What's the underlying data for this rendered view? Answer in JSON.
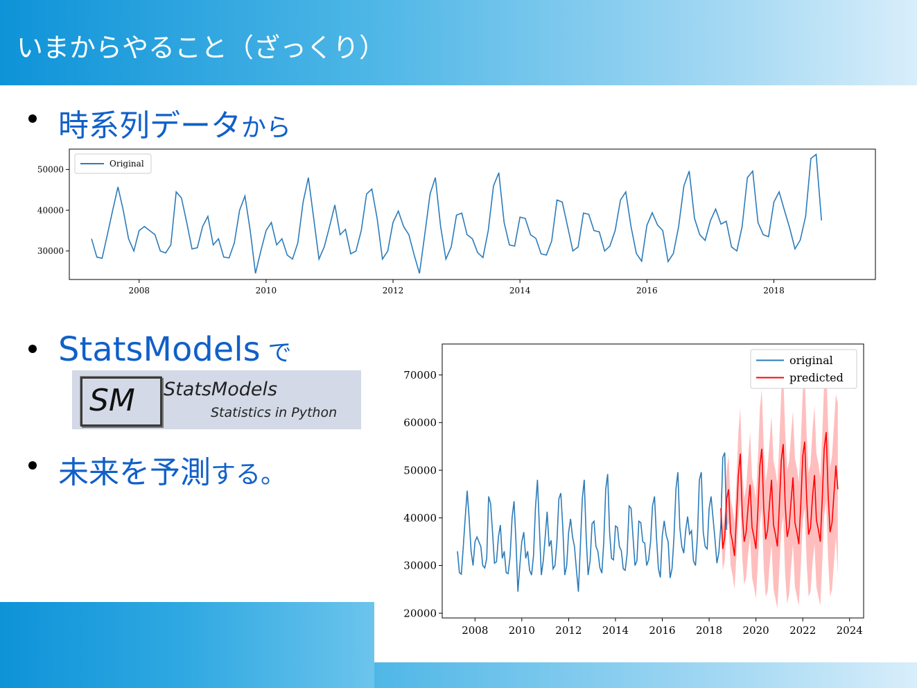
{
  "slide": {
    "title": "いまからやること（ざっくり）",
    "bullets": [
      {
        "main": "時系列データ",
        "tail": "から"
      },
      {
        "main": "StatsModels",
        "tail": " で"
      },
      {
        "main": "未来を予測",
        "tail": "する。"
      }
    ],
    "logo": {
      "letters": "SM",
      "name": "StatsModels",
      "tagline": "Statistics in Python"
    }
  },
  "colors": {
    "accent_blue": "#1060c8",
    "series_original": "#2b7bb9",
    "series_predicted": "#ff0000",
    "confidence_band": "#ffb3b3"
  },
  "chart_data": [
    {
      "type": "line",
      "x_start": "2007-04",
      "x_step": "1 month",
      "xticks": [
        "2008",
        "2010",
        "2012",
        "2014",
        "2016",
        "2018"
      ],
      "yticks": [
        "30000",
        "40000",
        "50000"
      ],
      "ylim": [
        23000,
        55000
      ],
      "grid": false,
      "legend_position": "top-left",
      "series": [
        {
          "name": "Original",
          "values": [
            33000,
            28500,
            28200,
            34000,
            40000,
            45700,
            40000,
            33000,
            30000,
            35000,
            36000,
            35000,
            34000,
            30000,
            29500,
            31500,
            44500,
            43000,
            37000,
            30500,
            30800,
            36000,
            38500,
            31500,
            33000,
            28500,
            28300,
            32000,
            40000,
            43500,
            35000,
            24500,
            30000,
            35000,
            37000,
            31500,
            33000,
            29000,
            28000,
            32000,
            42000,
            48000,
            38000,
            28000,
            31000,
            36000,
            41300,
            34000,
            35300,
            29300,
            30000,
            35000,
            44000,
            45200,
            38000,
            28000,
            30000,
            37000,
            39800,
            36000,
            34000,
            29000,
            24500,
            34000,
            44000,
            48000,
            36000,
            28000,
            31000,
            38800,
            39300,
            34000,
            33000,
            29600,
            28400,
            35000,
            46000,
            49200,
            37000,
            31500,
            31200,
            38300,
            38000,
            34000,
            33100,
            29300,
            29000,
            32500,
            42500,
            42000,
            36000,
            30000,
            31000,
            39300,
            39000,
            35000,
            34700,
            30000,
            31200,
            35000,
            42500,
            44500,
            36000,
            29400,
            27500,
            36300,
            39400,
            36400,
            35000,
            27400,
            29400,
            36000,
            46000,
            49600,
            38000,
            34000,
            32600,
            37400,
            40300,
            36600,
            37300,
            31000,
            30000,
            36000,
            48000,
            49600,
            37000,
            34000,
            33500,
            42000,
            44500,
            40000,
            35600,
            30500,
            32700,
            38500,
            52700,
            53700,
            37500
          ]
        }
      ]
    },
    {
      "type": "line",
      "x_start": "2007-04",
      "x_step": "1 month",
      "xticks": [
        "2008",
        "2010",
        "2012",
        "2014",
        "2016",
        "2018",
        "2020",
        "2022",
        "2024"
      ],
      "yticks": [
        "20000",
        "30000",
        "40000",
        "50000",
        "60000",
        "70000"
      ],
      "ylim": [
        19000,
        76500
      ],
      "grid": false,
      "legend_position": "top-right",
      "series": [
        {
          "name": "original",
          "values": [
            33000,
            28500,
            28200,
            34000,
            40000,
            45700,
            40000,
            33000,
            30000,
            35000,
            36000,
            35000,
            34000,
            30000,
            29500,
            31500,
            44500,
            43000,
            37000,
            30500,
            30800,
            36000,
            38500,
            31500,
            33000,
            28500,
            28300,
            32000,
            40000,
            43500,
            35000,
            24500,
            30000,
            35000,
            37000,
            31500,
            33000,
            29000,
            28000,
            32000,
            42000,
            48000,
            38000,
            28000,
            31000,
            36000,
            41300,
            34000,
            35300,
            29300,
            30000,
            35000,
            44000,
            45200,
            38000,
            28000,
            30000,
            37000,
            39800,
            36000,
            34000,
            29000,
            24500,
            34000,
            44000,
            48000,
            36000,
            28000,
            31000,
            38800,
            39300,
            34000,
            33000,
            29600,
            28400,
            35000,
            46000,
            49200,
            37000,
            31500,
            31200,
            38300,
            38000,
            34000,
            33100,
            29300,
            29000,
            32500,
            42500,
            42000,
            36000,
            30000,
            31000,
            39300,
            39000,
            35000,
            34700,
            30000,
            31200,
            35000,
            42500,
            44500,
            36000,
            29400,
            27500,
            36300,
            39400,
            36400,
            35000,
            27400,
            29400,
            36000,
            46000,
            49600,
            38000,
            34000,
            32600,
            37400,
            40300,
            36600,
            37300,
            31000,
            30000,
            36000,
            48000,
            49600,
            37000,
            34000,
            33500,
            42000,
            44500,
            40000,
            35600,
            30500,
            32700,
            38500,
            52700,
            53700,
            37500
          ]
        },
        {
          "name": "predicted",
          "start": "2018-07",
          "values": [
            42000,
            33500,
            36000,
            44000,
            46000,
            37000,
            35000,
            32000,
            40000,
            49000,
            53500,
            41000,
            35000,
            37000,
            42500,
            47000,
            38000,
            36000,
            33500,
            41500,
            51000,
            54500,
            42000,
            35500,
            37500,
            43000,
            48000,
            38500,
            36500,
            34000,
            42500,
            52000,
            55500,
            43000,
            36000,
            38000,
            43500,
            48500,
            39000,
            37000,
            34500,
            43000,
            53000,
            56000,
            44000,
            36500,
            38000,
            44500,
            49000,
            39500,
            37500,
            35000,
            44000,
            54500,
            58000,
            45000,
            37000,
            39000,
            45000,
            51000,
            46000
          ]
        },
        {
          "name": "predicted_lower",
          "start": "2018-07",
          "values": [
            38000,
            29000,
            31000,
            38000,
            39000,
            30000,
            28000,
            25000,
            32000,
            40000,
            44000,
            31500,
            26000,
            27500,
            32500,
            36000,
            27500,
            25500,
            23000,
            30500,
            39000,
            42000,
            29500,
            23500,
            24500,
            30000,
            34500,
            25000,
            23000,
            21000,
            29000,
            37500,
            40500,
            28000,
            22000,
            24000,
            29500,
            34500,
            25500,
            23500,
            21500,
            30000,
            39500,
            42000,
            30500,
            23500,
            24500,
            30500,
            34500,
            25500,
            23500,
            21500,
            30500,
            40500,
            43500,
            31000,
            23500,
            25000,
            30500,
            36000,
            28000
          ]
        },
        {
          "name": "predicted_upper",
          "start": "2018-07",
          "values": [
            46000,
            38000,
            41000,
            50000,
            53000,
            44000,
            42000,
            39000,
            48000,
            58000,
            63000,
            50500,
            44000,
            46500,
            52500,
            58000,
            48500,
            46500,
            44000,
            52500,
            63000,
            67000,
            54500,
            47500,
            50500,
            56000,
            61500,
            52000,
            50000,
            47000,
            56000,
            66500,
            70500,
            58000,
            50000,
            52000,
            57500,
            62500,
            52500,
            50500,
            47500,
            56000,
            66500,
            70000,
            57500,
            49500,
            51500,
            58500,
            63500,
            53500,
            51500,
            48500,
            57500,
            68500,
            72500,
            59000,
            50500,
            53000,
            59500,
            66000,
            64000
          ]
        }
      ]
    }
  ]
}
